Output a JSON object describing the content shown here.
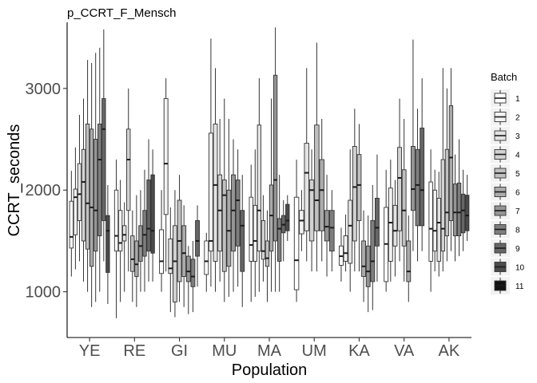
{
  "chart_data": {
    "type": "boxplot",
    "title": "p_CCRT_F_Mensch",
    "xlabel": "Population",
    "ylabel": "CCRT_seconds",
    "ylim": [
      550,
      3650
    ],
    "yticks": [
      1000,
      2000,
      3000
    ],
    "grid": false,
    "legend": {
      "title": "Batch",
      "position": "right"
    },
    "categories": [
      "YE",
      "RE",
      "GI",
      "MU",
      "MA",
      "UM",
      "KA",
      "VA",
      "AK"
    ],
    "batches": [
      "1",
      "2",
      "3",
      "4",
      "5",
      "6",
      "7",
      "8",
      "9",
      "10",
      "11"
    ],
    "batch_colors": [
      "#ffffff",
      "#f2f2f2",
      "#e3e3e3",
      "#d2d2d2",
      "#c0c0c0",
      "#aaaaaa",
      "#959595",
      "#7e7e7e",
      "#666666",
      "#4a4a4a",
      "#111111"
    ],
    "groups": [
      {
        "population": "YE",
        "boxes": [
          {
            "batch": 1,
            "low": 1150,
            "q1": 1430,
            "median": 1540,
            "q3": 1890,
            "high": 2190
          },
          {
            "batch": 2,
            "low": 1220,
            "q1": 1560,
            "median": 1930,
            "q3": 2010,
            "high": 2420
          },
          {
            "batch": 3,
            "low": 1300,
            "q1": 1700,
            "median": 1960,
            "q3": 2260,
            "high": 2740
          },
          {
            "batch": 4,
            "low": 1100,
            "q1": 1500,
            "median": 2080,
            "q3": 2400,
            "high": 2900
          },
          {
            "batch": 5,
            "low": 1000,
            "q1": 1420,
            "median": 1870,
            "q3": 2650,
            "high": 3280
          },
          {
            "batch": 6,
            "low": 850,
            "q1": 1250,
            "median": 1830,
            "q3": 2600,
            "high": 3250
          },
          {
            "batch": 7,
            "low": 900,
            "q1": 1400,
            "median": 1800,
            "q3": 2500,
            "high": 3350
          },
          {
            "batch": 8,
            "low": 1000,
            "q1": 1550,
            "median": 2300,
            "q3": 2650,
            "high": 3400
          },
          {
            "batch": 9,
            "low": 1300,
            "q1": 1700,
            "median": 2600,
            "q3": 2900,
            "high": 3580
          },
          {
            "batch": 10,
            "low": 880,
            "q1": 1190,
            "median": 1600,
            "q3": 1750,
            "high": 2050
          }
        ]
      },
      {
        "population": "RE",
        "boxes": [
          {
            "batch": 1,
            "low": 740,
            "q1": 1400,
            "median": 1550,
            "q3": 2000,
            "high": 2300
          },
          {
            "batch": 2,
            "low": 900,
            "q1": 1400,
            "median": 1480,
            "q3": 1800,
            "high": 2100
          },
          {
            "batch": 3,
            "low": 1000,
            "q1": 1500,
            "median": 1560,
            "q3": 1650,
            "high": 1880
          },
          {
            "batch": 4,
            "low": 1200,
            "q1": 1800,
            "median": 2300,
            "q3": 2600,
            "high": 3000
          },
          {
            "batch": 5,
            "low": 900,
            "q1": 1200,
            "median": 1320,
            "q3": 1550,
            "high": 1800
          },
          {
            "batch": 6,
            "low": 850,
            "q1": 1150,
            "median": 1270,
            "q3": 1500,
            "high": 1950
          },
          {
            "batch": 7,
            "low": 1000,
            "q1": 1300,
            "median": 1450,
            "q3": 1650,
            "high": 2000
          },
          {
            "batch": 8,
            "low": 1000,
            "q1": 1350,
            "median": 1560,
            "q3": 1800,
            "high": 2200
          },
          {
            "batch": 9,
            "low": 1100,
            "q1": 1400,
            "median": 1620,
            "q3": 2100,
            "high": 2500
          },
          {
            "batch": 10,
            "low": 1100,
            "q1": 1380,
            "median": 1600,
            "q3": 2150,
            "high": 2400
          }
        ]
      },
      {
        "population": "GI",
        "boxes": [
          {
            "batch": 1,
            "low": 1000,
            "q1": 1180,
            "median": 1300,
            "q3": 1610,
            "high": 2000
          },
          {
            "batch": 2,
            "low": 1200,
            "q1": 1760,
            "median": 2260,
            "q3": 2900,
            "high": 3100
          },
          {
            "batch": 3,
            "low": 800,
            "q1": 1180,
            "median": 1230,
            "q3": 1520,
            "high": 1830
          },
          {
            "batch": 4,
            "low": 750,
            "q1": 900,
            "median": 1300,
            "q3": 1650,
            "high": 2000
          },
          {
            "batch": 5,
            "low": 900,
            "q1": 1100,
            "median": 1500,
            "q3": 1900,
            "high": 2150
          },
          {
            "batch": 6,
            "low": 850,
            "q1": 1150,
            "median": 1380,
            "q3": 1650,
            "high": 1850
          },
          {
            "batch": 7,
            "low": 780,
            "q1": 1100,
            "median": 1200,
            "q3": 1350,
            "high": 1450
          },
          {
            "batch": 8,
            "low": 800,
            "q1": 1050,
            "median": 1150,
            "q3": 1320,
            "high": 1500
          },
          {
            "batch": 9,
            "low": 1050,
            "q1": 1350,
            "median": 1500,
            "q3": 1700,
            "high": 1850
          }
        ]
      },
      {
        "population": "MU",
        "boxes": [
          {
            "batch": 1,
            "low": 1000,
            "q1": 1170,
            "median": 1300,
            "q3": 1500,
            "high": 1580
          },
          {
            "batch": 2,
            "low": 1050,
            "q1": 1400,
            "median": 1500,
            "q3": 2560,
            "high": 3490
          },
          {
            "batch": 3,
            "low": 1000,
            "q1": 1300,
            "median": 2050,
            "q3": 2650,
            "high": 3200
          },
          {
            "batch": 4,
            "low": 1100,
            "q1": 1400,
            "median": 1800,
            "q3": 2150,
            "high": 2700
          },
          {
            "batch": 5,
            "low": 900,
            "q1": 1200,
            "median": 1950,
            "q3": 2100,
            "high": 2900
          },
          {
            "batch": 6,
            "low": 950,
            "q1": 1250,
            "median": 1600,
            "q3": 2000,
            "high": 2700
          },
          {
            "batch": 7,
            "low": 1000,
            "q1": 1400,
            "median": 1800,
            "q3": 2150,
            "high": 2500
          },
          {
            "batch": 8,
            "low": 1050,
            "q1": 1450,
            "median": 1900,
            "q3": 2100,
            "high": 2400
          },
          {
            "batch": 9,
            "low": 850,
            "q1": 1200,
            "median": 1650,
            "q3": 1800,
            "high": 2150
          }
        ]
      },
      {
        "population": "MA",
        "boxes": [
          {
            "batch": 1,
            "low": 900,
            "q1": 1300,
            "median": 1460,
            "q3": 1930,
            "high": 2250
          },
          {
            "batch": 2,
            "low": 950,
            "q1": 1300,
            "median": 1500,
            "q3": 1850,
            "high": 2400
          },
          {
            "batch": 3,
            "low": 1000,
            "q1": 1400,
            "median": 1800,
            "q3": 2640,
            "high": 3100
          },
          {
            "batch": 4,
            "low": 1100,
            "q1": 1320,
            "median": 1400,
            "q3": 1700,
            "high": 1950
          },
          {
            "batch": 5,
            "low": 900,
            "q1": 1250,
            "median": 1330,
            "q3": 1500,
            "high": 1800
          },
          {
            "batch": 6,
            "low": 1000,
            "q1": 1400,
            "median": 1750,
            "q3": 2050,
            "high": 2900
          },
          {
            "batch": 7,
            "low": 1000,
            "q1": 1500,
            "median": 2100,
            "q3": 3130,
            "high": 3600
          },
          {
            "batch": 8,
            "low": 1000,
            "q1": 1300,
            "median": 1620,
            "q3": 1720,
            "high": 2150
          },
          {
            "batch": 9,
            "low": 1300,
            "q1": 1580,
            "median": 1660,
            "q3": 1750,
            "high": 1900
          },
          {
            "batch": 10,
            "low": 1500,
            "q1": 1600,
            "median": 1700,
            "q3": 1860,
            "high": 1950
          }
        ]
      },
      {
        "population": "UM",
        "boxes": [
          {
            "batch": 1,
            "low": 900,
            "q1": 1020,
            "median": 1310,
            "q3": 1930,
            "high": 2300
          },
          {
            "batch": 2,
            "low": 1400,
            "q1": 1570,
            "median": 1700,
            "q3": 1800,
            "high": 2000
          },
          {
            "batch": 3,
            "low": 1300,
            "q1": 1600,
            "median": 2170,
            "q3": 2460,
            "high": 3200
          },
          {
            "batch": 4,
            "low": 1200,
            "q1": 1500,
            "median": 2000,
            "q3": 2100,
            "high": 2400
          },
          {
            "batch": 5,
            "low": 1200,
            "q1": 1600,
            "median": 1900,
            "q3": 2640,
            "high": 3450
          },
          {
            "batch": 6,
            "low": 1300,
            "q1": 1600,
            "median": 2000,
            "q3": 2300,
            "high": 2700
          },
          {
            "batch": 7,
            "low": 1150,
            "q1": 1500,
            "median": 1640,
            "q3": 1800,
            "high": 2150
          },
          {
            "batch": 8,
            "low": 1200,
            "q1": 1400,
            "median": 1630,
            "q3": 1800,
            "high": 2000
          }
        ]
      },
      {
        "population": "KA",
        "boxes": [
          {
            "batch": 1,
            "low": 1100,
            "q1": 1260,
            "median": 1350,
            "q3": 1450,
            "high": 1630
          },
          {
            "batch": 2,
            "low": 1200,
            "q1": 1300,
            "median": 1380,
            "q3": 1550,
            "high": 1760
          },
          {
            "batch": 3,
            "low": 1000,
            "q1": 1280,
            "median": 1650,
            "q3": 1900,
            "high": 2400
          },
          {
            "batch": 4,
            "low": 1200,
            "q1": 1500,
            "median": 2030,
            "q3": 2430,
            "high": 2800
          },
          {
            "batch": 5,
            "low": 1200,
            "q1": 1700,
            "median": 2050,
            "q3": 2350,
            "high": 2650
          },
          {
            "batch": 6,
            "low": 900,
            "q1": 1150,
            "median": 1250,
            "q3": 1500,
            "high": 1800
          },
          {
            "batch": 7,
            "low": 800,
            "q1": 1050,
            "median": 1200,
            "q3": 1450,
            "high": 1750
          },
          {
            "batch": 8,
            "low": 820,
            "q1": 1100,
            "median": 1300,
            "q3": 1700,
            "high": 2050
          },
          {
            "batch": 9,
            "low": 1100,
            "q1": 1450,
            "median": 1630,
            "q3": 1920,
            "high": 2350
          }
        ]
      },
      {
        "population": "VA",
        "boxes": [
          {
            "batch": 1,
            "low": 1000,
            "q1": 1100,
            "median": 1470,
            "q3": 1830,
            "high": 2200
          },
          {
            "batch": 2,
            "low": 1100,
            "q1": 1300,
            "median": 1680,
            "q3": 2020,
            "high": 2300
          },
          {
            "batch": 3,
            "low": 1150,
            "q1": 1450,
            "median": 1600,
            "q3": 1850,
            "high": 2100
          },
          {
            "batch": 4,
            "low": 1300,
            "q1": 1600,
            "median": 2120,
            "q3": 2420,
            "high": 2900
          },
          {
            "batch": 5,
            "low": 1100,
            "q1": 1450,
            "median": 1800,
            "q3": 2200,
            "high": 2700
          },
          {
            "batch": 6,
            "low": 900,
            "q1": 1100,
            "median": 1200,
            "q3": 1500,
            "high": 1750
          },
          {
            "batch": 7,
            "low": 1400,
            "q1": 1800,
            "median": 2010,
            "q3": 2430,
            "high": 3480
          },
          {
            "batch": 8,
            "low": 1300,
            "q1": 1650,
            "median": 2050,
            "q3": 2400,
            "high": 2800
          },
          {
            "batch": 9,
            "low": 1400,
            "q1": 1650,
            "median": 2000,
            "q3": 2610,
            "high": 3100
          }
        ]
      },
      {
        "population": "AK",
        "boxes": [
          {
            "batch": 1,
            "low": 1000,
            "q1": 1300,
            "median": 1620,
            "q3": 2080,
            "high": 2400
          },
          {
            "batch": 2,
            "low": 1200,
            "q1": 1400,
            "median": 1600,
            "q3": 2000,
            "high": 2200
          },
          {
            "batch": 3,
            "low": 1150,
            "q1": 1300,
            "median": 1680,
            "q3": 1920,
            "high": 2180
          },
          {
            "batch": 4,
            "low": 1200,
            "q1": 1400,
            "median": 1620,
            "q3": 2300,
            "high": 3200
          },
          {
            "batch": 5,
            "low": 1300,
            "q1": 1550,
            "median": 1780,
            "q3": 2400,
            "high": 3000
          },
          {
            "batch": 6,
            "low": 1400,
            "q1": 1700,
            "median": 2320,
            "q3": 2830,
            "high": 3200
          },
          {
            "batch": 7,
            "low": 1300,
            "q1": 1550,
            "median": 1780,
            "q3": 2060,
            "high": 2350
          },
          {
            "batch": 8,
            "low": 1350,
            "q1": 1550,
            "median": 1780,
            "q3": 2070,
            "high": 2500
          },
          {
            "batch": 9,
            "low": 1400,
            "q1": 1580,
            "median": 1800,
            "q3": 1960,
            "high": 2200
          },
          {
            "batch": 10,
            "low": 1500,
            "q1": 1600,
            "median": 1750,
            "q3": 1950,
            "high": 2150
          }
        ]
      }
    ]
  }
}
